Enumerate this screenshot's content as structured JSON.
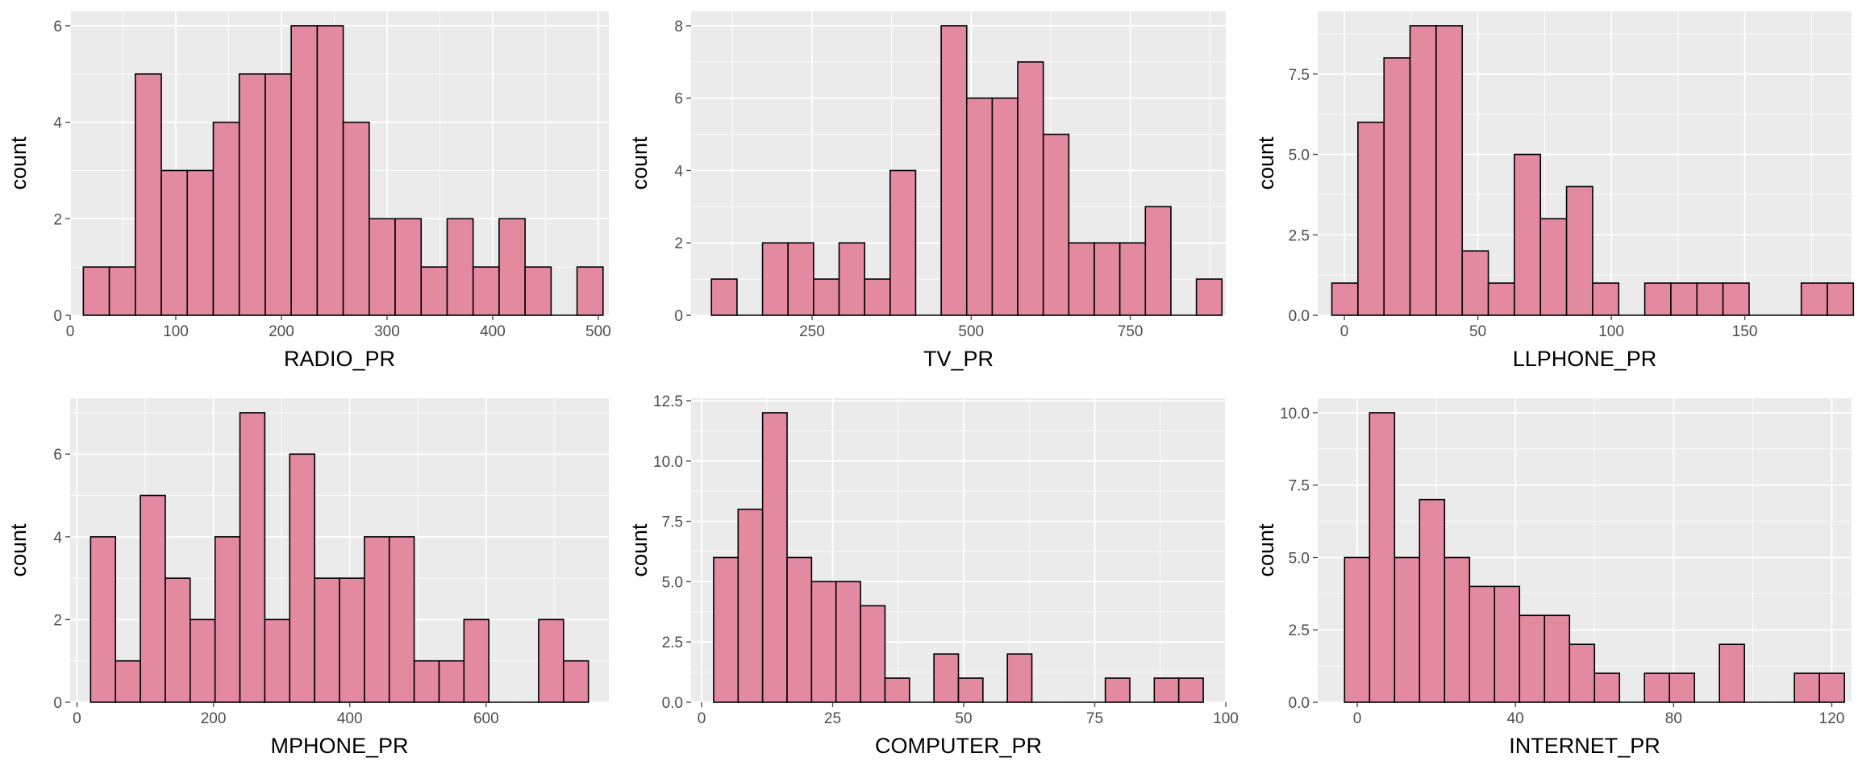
{
  "style": {
    "panel_bg": "#ebebeb",
    "grid_major": "#ffffff",
    "bar_fill": "#e38aa0",
    "bar_stroke": "#000000",
    "tick_color": "#4d4d4d"
  },
  "chart_data": [
    {
      "type": "bar",
      "subtype": "histogram",
      "xlabel": "RADIO_PR",
      "ylabel": "count",
      "xlim": [
        0,
        510
      ],
      "ylim": [
        0,
        6.3
      ],
      "xticks": [
        0,
        100,
        200,
        300,
        400,
        500
      ],
      "yticks": [
        0,
        2,
        4,
        6
      ],
      "ytick_labels": [
        "0",
        "2",
        "4",
        "6"
      ],
      "bins": {
        "start": 12.5,
        "width": 24.6,
        "counts": [
          1,
          1,
          5,
          3,
          3,
          4,
          5,
          5,
          6,
          6,
          4,
          2,
          2,
          1,
          2,
          1,
          2,
          1,
          0,
          1
        ]
      },
      "grid": true
    },
    {
      "type": "bar",
      "subtype": "histogram",
      "xlabel": "TV_PR",
      "ylabel": "count",
      "xlim": [
        60,
        900
      ],
      "ylim": [
        0,
        8.4
      ],
      "xticks": [
        250,
        500,
        750
      ],
      "yticks": [
        0,
        2,
        4,
        6,
        8
      ],
      "ytick_labels": [
        "0",
        "2",
        "4",
        "6",
        "8"
      ],
      "bins": {
        "start": 92,
        "width": 40.1,
        "counts": [
          1,
          0,
          2,
          2,
          1,
          2,
          1,
          4,
          0,
          8,
          6,
          6,
          7,
          5,
          2,
          2,
          2,
          3,
          0,
          1
        ]
      },
      "grid": true
    },
    {
      "type": "bar",
      "subtype": "histogram",
      "xlabel": "LLPHONE_PR",
      "ylabel": "count",
      "xlim": [
        -10,
        190
      ],
      "ylim": [
        0,
        9.45
      ],
      "xticks": [
        0,
        50,
        100,
        150
      ],
      "yticks": [
        0,
        2.5,
        5,
        7.5
      ],
      "ytick_labels": [
        "0.0",
        "2.5",
        "5.0",
        "7.5"
      ],
      "bins": {
        "start": -4.7,
        "width": 9.77,
        "counts": [
          1,
          6,
          8,
          9,
          9,
          2,
          1,
          5,
          3,
          4,
          1,
          0,
          1,
          1,
          1,
          1,
          0,
          0,
          1,
          1
        ]
      },
      "grid": true
    },
    {
      "type": "bar",
      "subtype": "histogram",
      "xlabel": "MPHONE_PR",
      "ylabel": "count",
      "xlim": [
        -10,
        780
      ],
      "ylim": [
        0,
        7.35
      ],
      "xticks": [
        0,
        200,
        400,
        600
      ],
      "yticks": [
        0,
        2,
        4,
        6
      ],
      "ytick_labels": [
        "0",
        "2",
        "4",
        "6"
      ],
      "bins": {
        "start": 20,
        "width": 36.5,
        "counts": [
          4,
          1,
          5,
          3,
          2,
          4,
          7,
          2,
          6,
          3,
          3,
          4,
          4,
          1,
          1,
          2,
          0,
          0,
          2,
          1
        ]
      },
      "grid": true
    },
    {
      "type": "bar",
      "subtype": "histogram",
      "xlabel": "COMPUTER_PR",
      "ylabel": "count",
      "xlim": [
        -2,
        100
      ],
      "ylim": [
        0,
        12.6
      ],
      "xticks": [
        0,
        25,
        50,
        75,
        100
      ],
      "yticks": [
        0,
        2.5,
        5,
        7.5,
        10,
        12.5
      ],
      "ytick_labels": [
        "0.0",
        "2.5",
        "5.0",
        "7.5",
        "10.0",
        "12.5"
      ],
      "bins": {
        "start": 2.3,
        "width": 4.67,
        "counts": [
          6,
          8,
          12,
          6,
          5,
          5,
          4,
          1,
          0,
          2,
          1,
          0,
          2,
          0,
          0,
          0,
          1,
          0,
          1,
          1
        ]
      },
      "grid": true
    },
    {
      "type": "bar",
      "subtype": "histogram",
      "xlabel": "INTERNET_PR",
      "ylabel": "count",
      "xlim": [
        -10,
        125
      ],
      "ylim": [
        0,
        10.5
      ],
      "xticks": [
        0,
        40,
        80,
        120
      ],
      "yticks": [
        0,
        2.5,
        5,
        7.5,
        10
      ],
      "ytick_labels": [
        "0.0",
        "2.5",
        "5.0",
        "7.5",
        "10.0"
      ],
      "bins": {
        "start": -3.2,
        "width": 6.32,
        "counts": [
          5,
          10,
          5,
          7,
          5,
          4,
          4,
          3,
          3,
          2,
          1,
          0,
          1,
          1,
          0,
          2,
          0,
          0,
          1,
          1
        ]
      },
      "grid": true
    }
  ]
}
